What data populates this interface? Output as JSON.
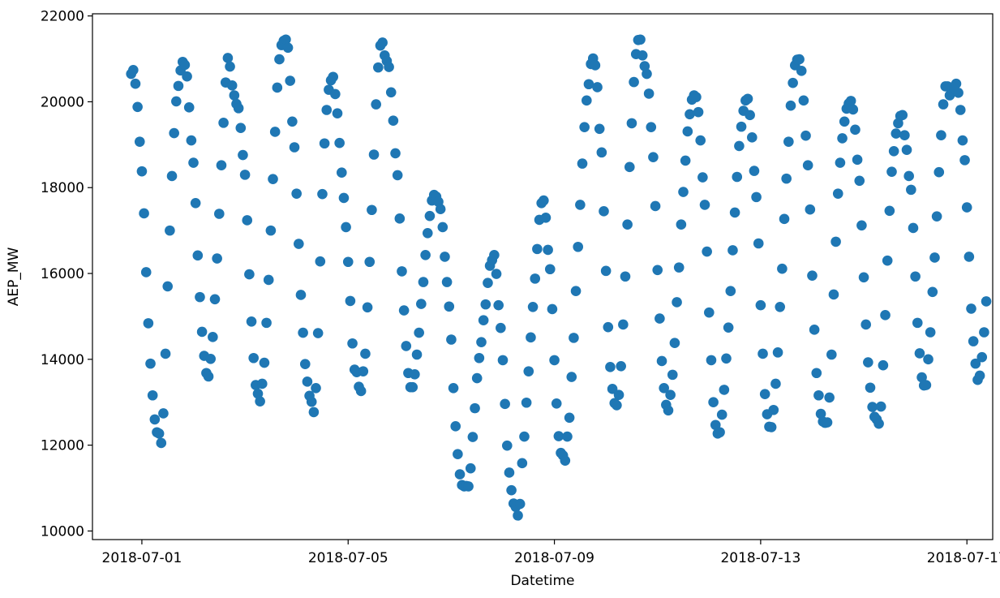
{
  "chart_data": {
    "type": "scatter",
    "title": "",
    "xlabel": "Datetime",
    "ylabel": "AEP_MW",
    "x_ticks": [
      "2018-07-01",
      "2018-07-05",
      "2018-07-09",
      "2018-07-13",
      "2018-07-17"
    ],
    "y_ticks": [
      10000,
      12000,
      14000,
      16000,
      18000,
      20000,
      22000
    ],
    "xlim": [
      "2018-06-30 01:00",
      "2018-07-17 12:00"
    ],
    "ylim": [
      9800,
      22050
    ],
    "grid": false,
    "marker_color": "#1f77b4",
    "series": [
      {
        "x_start": "2018-06-30 19:00",
        "x_step_hours": 1,
        "values": [
          20650,
          20740,
          20420,
          19880,
          19070,
          18380,
          17400,
          16030,
          14840,
          13900,
          13160,
          12600,
          12300,
          12270,
          12050,
          12740,
          14130,
          15700,
          17000,
          18270,
          19270,
          20010,
          20370,
          20730,
          20930,
          20860,
          20590,
          19870,
          19100,
          18580,
          17640,
          16420,
          15450,
          14640,
          14080,
          13680,
          13600,
          14010,
          14520,
          15400,
          16350,
          17390,
          18520,
          19510,
          20450,
          21020,
          20820,
          20380,
          20150,
          19950,
          19850,
          19390,
          18760,
          18300,
          17240,
          15980,
          14880,
          14030,
          13400,
          13200,
          13020,
          13430,
          13920,
          14850,
          15850,
          17000,
          18200,
          19300,
          20330,
          20990,
          21320,
          21420,
          21450,
          21260,
          20490,
          19540,
          18940,
          17860,
          16690,
          15500,
          14620,
          13890,
          13480,
          13150,
          13010,
          12770,
          13330,
          14610,
          16280,
          17850,
          19030,
          19810,
          20280,
          20500,
          20580,
          20180,
          19730,
          19040,
          18350,
          17760,
          17080,
          16270,
          15360,
          14370,
          13760,
          13700,
          13360,
          13260,
          13720,
          14130,
          15210,
          16270,
          17480,
          18770,
          19940,
          20800,
          21310,
          21380,
          21080,
          20950,
          20810,
          20220,
          19560,
          18800,
          18290,
          17280,
          16050,
          15140,
          14310,
          13680,
          13350,
          13350,
          13650,
          14110,
          14620,
          15290,
          15800,
          16430,
          16940,
          17340,
          17700,
          17830,
          17790,
          17670,
          17500,
          17080,
          16390,
          15800,
          15230,
          14460,
          13330,
          12440,
          11790,
          11320,
          11070,
          11040,
          11050,
          11040,
          11460,
          12190,
          12860,
          13560,
          14030,
          14400,
          14910,
          15280,
          15780,
          16180,
          16310,
          16430,
          15990,
          15260,
          14730,
          13980,
          12960,
          11990,
          11360,
          10950,
          10640,
          10560,
          10360,
          10630,
          11580,
          12200,
          12990,
          13720,
          14510,
          15220,
          15880,
          16570,
          17250,
          17640,
          17700,
          17300,
          16550,
          16100,
          15170,
          13980,
          12970,
          12210,
          11820,
          11760,
          11640,
          12200,
          12640,
          13590,
          14500,
          15590,
          16620,
          17600,
          18560,
          19410,
          20030,
          20410,
          20880,
          21010,
          20850,
          20340,
          19370,
          18820,
          17450,
          16060,
          14750,
          13820,
          13310,
          12980,
          12930,
          13170,
          13840,
          14810,
          15930,
          17140,
          18480,
          19500,
          20460,
          21110,
          21440,
          21450,
          21080,
          20830,
          20650,
          20190,
          19410,
          18710,
          17570,
          16080,
          14950,
          13960,
          13330,
          12940,
          12810,
          13170,
          13640,
          14380,
          15330,
          16140,
          17140,
          17900,
          18630,
          19310,
          19710,
          20050,
          20150,
          20110,
          19760,
          19100,
          18240,
          17600,
          16510,
          15090,
          13980,
          13000,
          12470,
          12270,
          12300,
          12710,
          13290,
          14020,
          14740,
          15590,
          16540,
          17420,
          18250,
          18970,
          19420,
          19790,
          20030,
          20070,
          19690,
          19170,
          18390,
          17780,
          16700,
          15260,
          14130,
          13190,
          12720,
          12430,
          12420,
          12820,
          13430,
          14160,
          15220,
          16110,
          17270,
          18210,
          19070,
          19910,
          20440,
          20850,
          20980,
          20990,
          20720,
          20030,
          19210,
          18520,
          17490,
          15950,
          14690,
          13680,
          13160,
          12730,
          12550,
          12520,
          12530,
          13110,
          14110,
          15510,
          16740,
          17860,
          18580,
          19150,
          19540,
          19840,
          19960,
          20020,
          19820,
          19350,
          18650,
          18160,
          17120,
          15910,
          14810,
          13930,
          13340,
          12890,
          12660,
          12600,
          12500,
          12900,
          13860,
          15030,
          16300,
          17460,
          18370,
          18850,
          19260,
          19500,
          19670,
          19690,
          19220,
          18880,
          18270,
          17950,
          17060,
          15930,
          14850,
          14140,
          13580,
          13390,
          13400,
          14000,
          14630,
          15570,
          16370,
          17330,
          18360,
          19220,
          19940,
          20360,
          20360,
          20150,
          20240,
          20310,
          20420,
          20210,
          19810,
          19100,
          18640,
          17540,
          16390,
          15180,
          14420,
          13900,
          13520,
          13620,
          14050,
          14630,
          15350
        ]
      }
    ]
  }
}
